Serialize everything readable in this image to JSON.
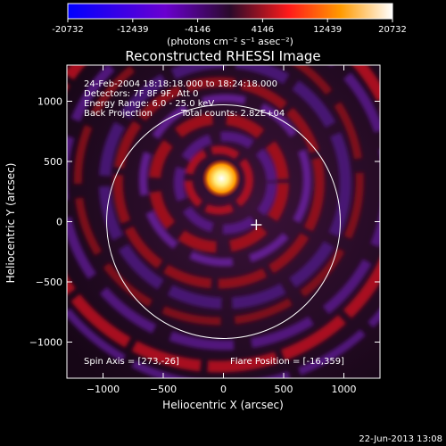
{
  "chart_data": {
    "type": "heatmap",
    "title": "Reconstructed RHESSI Image",
    "xlabel": "Heliocentric X (arcsec)",
    "ylabel": "Heliocentric Y (arcsec)",
    "xlim": [
      -1300,
      1300
    ],
    "ylim": [
      -1300,
      1300
    ],
    "x_ticks": [
      -1000,
      -500,
      0,
      500,
      1000
    ],
    "y_ticks": [
      -1000,
      -500,
      0,
      500,
      1000
    ],
    "colorbar": {
      "ticks": [
        "-20732",
        "-12439",
        "-4146",
        "4146",
        "12439",
        "20732"
      ],
      "unit_label": "(photons cm⁻² s⁻¹ asec⁻²)",
      "colors": [
        "#0000ff",
        "#6a00d0",
        "#2a0a2a",
        "#ff1a1a",
        "#ff9a00",
        "#ffffff"
      ]
    },
    "info_lines": [
      "24-Feb-2004 18:18:18.000 to 18:24:18.000",
      "Detectors: 7F 8F 9F, Att 0",
      "Energy Range: 6.0 - 25.0 keV"
    ],
    "info_method": "Back Projection",
    "info_counts": "Total counts: 2.82E+04",
    "spin_axis": "Spin Axis = [273,-26]",
    "flare_position": "Flare Position = [-16,359]",
    "source": {
      "x": -16,
      "y": 359,
      "peak": 20732
    },
    "spin_axis_point": {
      "x": 273,
      "y": -26
    },
    "solar_limb_radius": 970,
    "grid": false
  },
  "footer": {
    "timestamp": "22-Jun-2013 13:08"
  }
}
